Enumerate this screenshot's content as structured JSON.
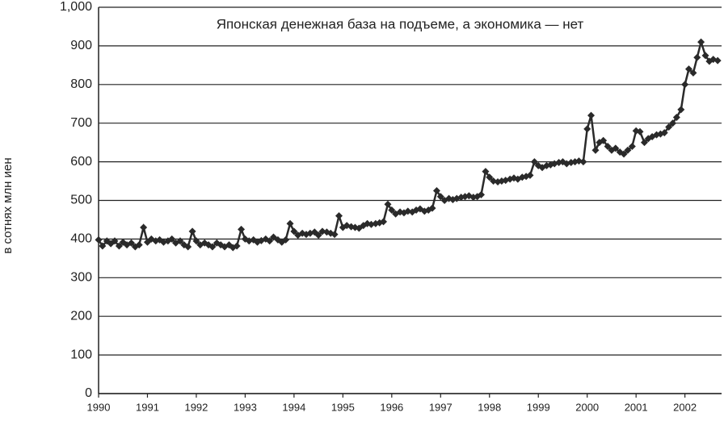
{
  "chart_data": {
    "type": "line",
    "title": "Японская денежная база на подъеме, а экономика — нет",
    "y_label": "в сотнях млн иен",
    "color": "#2a2a2a",
    "grid": true,
    "xlim": [
      1990,
      2002.75
    ],
    "ylim": [
      0,
      1000
    ],
    "xticks": [
      1990,
      1991,
      1992,
      1993,
      1994,
      1995,
      1996,
      1997,
      1998,
      1999,
      2000,
      2001,
      2002
    ],
    "yticks": [
      0,
      100,
      200,
      300,
      400,
      500,
      600,
      700,
      800,
      900,
      {
        "value": 1000,
        "label": "1,000"
      }
    ],
    "x": [
      1990,
      1990.08,
      1990.17,
      1990.25,
      1990.33,
      1990.42,
      1990.5,
      1990.58,
      1990.67,
      1990.75,
      1990.83,
      1990.92,
      1991,
      1991.08,
      1991.17,
      1991.25,
      1991.33,
      1991.42,
      1991.5,
      1991.58,
      1991.67,
      1991.75,
      1991.83,
      1991.92,
      1992,
      1992.08,
      1992.17,
      1992.25,
      1992.33,
      1992.42,
      1992.5,
      1992.58,
      1992.67,
      1992.75,
      1992.83,
      1992.92,
      1993,
      1993.08,
      1993.17,
      1993.25,
      1993.33,
      1993.42,
      1993.5,
      1993.58,
      1993.67,
      1993.75,
      1993.83,
      1993.92,
      1994,
      1994.08,
      1994.17,
      1994.25,
      1994.33,
      1994.42,
      1994.5,
      1994.58,
      1994.67,
      1994.75,
      1994.83,
      1994.92,
      1995,
      1995.08,
      1995.17,
      1995.25,
      1995.33,
      1995.42,
      1995.5,
      1995.58,
      1995.67,
      1995.75,
      1995.83,
      1995.92,
      1996,
      1996.08,
      1996.17,
      1996.25,
      1996.33,
      1996.42,
      1996.5,
      1996.58,
      1996.67,
      1996.75,
      1996.83,
      1996.92,
      1997,
      1997.08,
      1997.17,
      1997.25,
      1997.33,
      1997.42,
      1997.5,
      1997.58,
      1997.67,
      1997.75,
      1997.83,
      1997.92,
      1998,
      1998.08,
      1998.17,
      1998.25,
      1998.33,
      1998.42,
      1998.5,
      1998.58,
      1998.67,
      1998.75,
      1998.83,
      1998.92,
      1999,
      1999.08,
      1999.17,
      1999.25,
      1999.33,
      1999.42,
      1999.5,
      1999.58,
      1999.67,
      1999.75,
      1999.83,
      1999.92,
      2000,
      2000.08,
      2000.17,
      2000.25,
      2000.33,
      2000.42,
      2000.5,
      2000.58,
      2000.67,
      2000.75,
      2000.83,
      2000.92,
      2001,
      2001.08,
      2001.17,
      2001.25,
      2001.33,
      2001.42,
      2001.5,
      2001.58,
      2001.67,
      2001.75,
      2001.83,
      2001.92,
      2002,
      2002.08,
      2002.17,
      2002.25,
      2002.33,
      2002.42,
      2002.5,
      2002.58,
      2002.67
    ],
    "values": [
      398,
      382,
      395,
      388,
      395,
      382,
      392,
      385,
      390,
      380,
      385,
      430,
      392,
      400,
      395,
      398,
      392,
      395,
      400,
      390,
      395,
      385,
      380,
      420,
      395,
      385,
      390,
      385,
      380,
      390,
      385,
      380,
      385,
      378,
      382,
      425,
      400,
      395,
      398,
      392,
      396,
      400,
      395,
      405,
      398,
      392,
      398,
      440,
      420,
      410,
      415,
      412,
      415,
      418,
      410,
      420,
      418,
      415,
      412,
      460,
      430,
      435,
      432,
      430,
      428,
      435,
      440,
      438,
      440,
      442,
      445,
      490,
      475,
      465,
      470,
      468,
      472,
      470,
      475,
      478,
      472,
      475,
      480,
      525,
      510,
      500,
      505,
      502,
      505,
      508,
      510,
      512,
      508,
      510,
      515,
      575,
      560,
      550,
      548,
      550,
      552,
      555,
      558,
      555,
      560,
      562,
      565,
      600,
      590,
      585,
      590,
      592,
      595,
      598,
      600,
      595,
      598,
      600,
      602,
      600,
      685,
      720,
      630,
      650,
      655,
      640,
      630,
      635,
      625,
      620,
      630,
      640,
      680,
      678,
      650,
      660,
      665,
      670,
      672,
      675,
      690,
      700,
      715,
      735,
      800,
      840,
      830,
      870,
      910,
      875,
      860,
      865,
      862
    ]
  }
}
